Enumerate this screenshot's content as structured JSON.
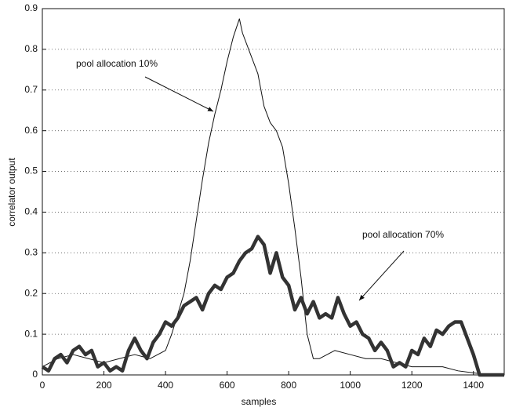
{
  "chart_data": {
    "type": "line",
    "xlabel": "samples",
    "ylabel": "correlator output",
    "xlim": [
      0,
      1500
    ],
    "ylim": [
      0,
      0.9
    ],
    "xticks": [
      0,
      200,
      400,
      600,
      800,
      1000,
      1200,
      1400
    ],
    "yticks": [
      0,
      0.1,
      0.2,
      0.3,
      0.4,
      0.5,
      0.6,
      0.7,
      0.8,
      0.9
    ],
    "grid": true,
    "series": [
      {
        "name": "pool allocation 10%",
        "color": "#111111",
        "x": [
          0,
          25,
          50,
          100,
          150,
          200,
          250,
          300,
          350,
          400,
          420,
          440,
          460,
          480,
          500,
          520,
          540,
          560,
          580,
          600,
          620,
          640,
          650,
          670,
          700,
          720,
          740,
          760,
          780,
          800,
          820,
          840,
          860,
          880,
          900,
          950,
          1000,
          1050,
          1100,
          1150,
          1200,
          1250,
          1300,
          1350,
          1400,
          1450,
          1500
        ],
        "values": [
          0.02,
          0.03,
          0.04,
          0.05,
          0.04,
          0.03,
          0.04,
          0.05,
          0.04,
          0.06,
          0.1,
          0.15,
          0.2,
          0.28,
          0.38,
          0.48,
          0.57,
          0.64,
          0.7,
          0.77,
          0.83,
          0.875,
          0.84,
          0.8,
          0.74,
          0.66,
          0.62,
          0.6,
          0.56,
          0.47,
          0.36,
          0.24,
          0.1,
          0.04,
          0.04,
          0.06,
          0.05,
          0.04,
          0.04,
          0.03,
          0.02,
          0.02,
          0.02,
          0.01,
          0.005,
          0,
          0
        ]
      },
      {
        "name": "pool allocation 70%",
        "color": "#333333",
        "x": [
          0,
          20,
          40,
          60,
          80,
          100,
          120,
          140,
          160,
          180,
          200,
          220,
          240,
          260,
          280,
          300,
          320,
          340,
          360,
          380,
          400,
          420,
          440,
          460,
          480,
          500,
          520,
          540,
          560,
          580,
          600,
          620,
          640,
          660,
          680,
          700,
          720,
          740,
          760,
          780,
          800,
          820,
          840,
          860,
          880,
          900,
          920,
          940,
          960,
          980,
          1000,
          1020,
          1040,
          1060,
          1080,
          1100,
          1120,
          1140,
          1160,
          1180,
          1200,
          1220,
          1240,
          1260,
          1280,
          1300,
          1320,
          1340,
          1360,
          1380,
          1400,
          1420,
          1450,
          1500
        ],
        "values": [
          0.02,
          0.01,
          0.04,
          0.05,
          0.03,
          0.06,
          0.07,
          0.05,
          0.06,
          0.02,
          0.03,
          0.01,
          0.02,
          0.01,
          0.06,
          0.09,
          0.06,
          0.04,
          0.08,
          0.1,
          0.13,
          0.12,
          0.14,
          0.17,
          0.18,
          0.19,
          0.16,
          0.2,
          0.22,
          0.21,
          0.24,
          0.25,
          0.28,
          0.3,
          0.31,
          0.34,
          0.32,
          0.25,
          0.3,
          0.24,
          0.22,
          0.16,
          0.19,
          0.15,
          0.18,
          0.14,
          0.15,
          0.14,
          0.19,
          0.15,
          0.12,
          0.13,
          0.1,
          0.09,
          0.06,
          0.08,
          0.06,
          0.02,
          0.03,
          0.02,
          0.06,
          0.05,
          0.09,
          0.07,
          0.11,
          0.1,
          0.12,
          0.13,
          0.13,
          0.09,
          0.05,
          0,
          0,
          0
        ]
      }
    ]
  }
}
